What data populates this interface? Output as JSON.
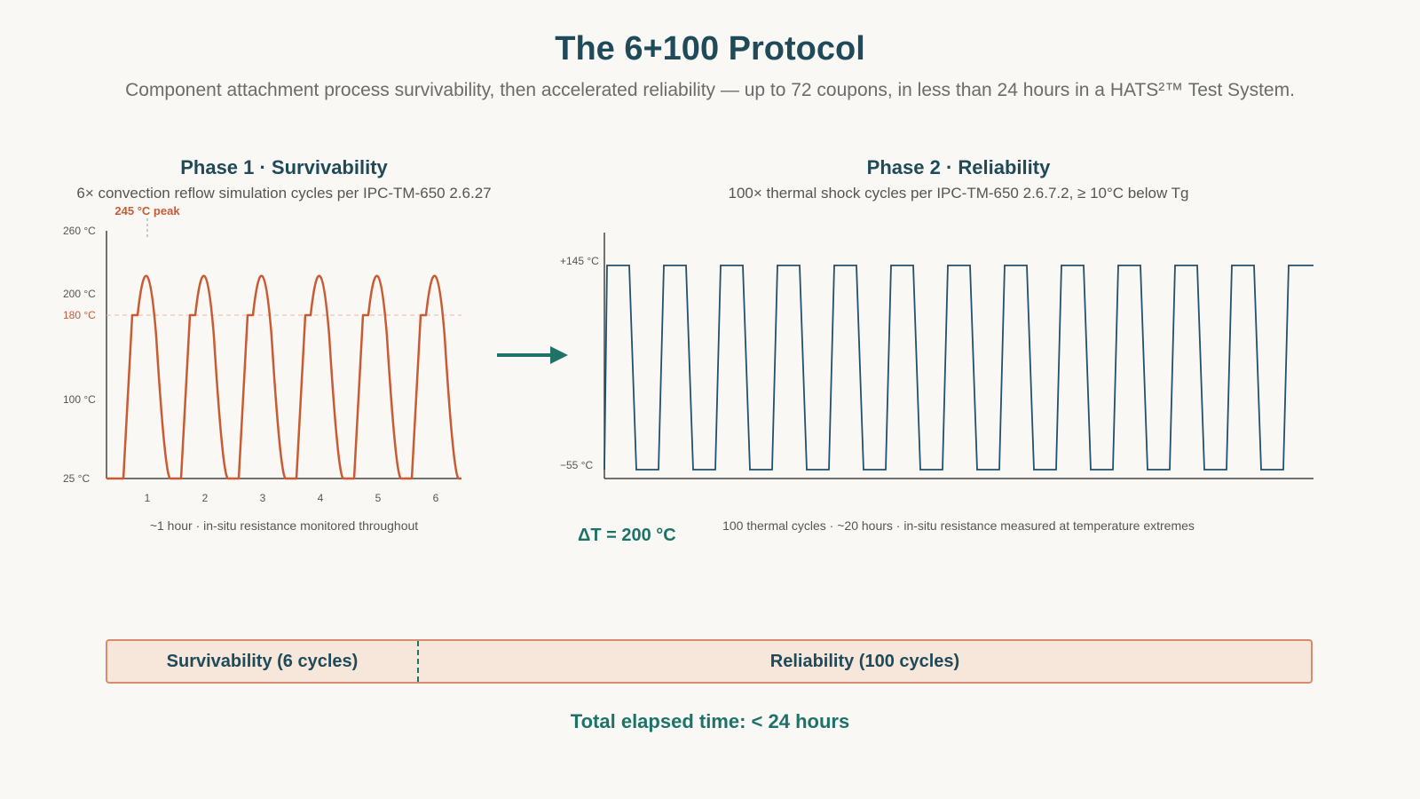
{
  "header": {
    "title": "The 6+100 Protocol",
    "subtitle": "Component attachment process survivability, then accelerated reliability — up to 72 coupons, in less than 24 hours in a HATS²™ Test System."
  },
  "phase1": {
    "title": "Phase 1 · Survivability",
    "description": "6× convection reflow simulation cycles per IPC-TM-650 2.6.27",
    "caption": "~1 hour · in-situ resistance monitored throughout"
  },
  "phase2": {
    "title": "Phase 2 · Reliability",
    "description": "100× thermal shock cycles per IPC-TM-650 2.6.7.2, ≥ 10°C below Tg",
    "caption": "100 thermal cycles · ~20 hours · in-situ resistance measured at temperature extremes",
    "delta": "ΔT = 200 °C"
  },
  "timeline": {
    "survivability_label": "Survivability (6 cycles)",
    "reliability_label": "Reliability (100 cycles)",
    "total": "Total elapsed time: < 24 hours"
  },
  "colors": {
    "reflow": "#c95b34",
    "shock": "#23506a",
    "accent": "#1e7268",
    "axis": "#444444"
  },
  "chart_data": [
    {
      "type": "line",
      "series": [
        {
          "values": [
            25,
            180,
            180,
            245,
            25
          ]
        }
      ],
      "cycles": 6,
      "x_ticks": [
        "1",
        "2",
        "3",
        "4",
        "5",
        "6"
      ],
      "y_ticks": [
        {
          "value": 260,
          "label": "260 °C"
        },
        {
          "value": 200,
          "label": "200 °C"
        },
        {
          "value": 180,
          "label": "180 °C"
        },
        {
          "value": 100,
          "label": "100 °C"
        },
        {
          "value": 25,
          "label": "25 °C"
        }
      ],
      "reference_line": {
        "value": 180,
        "label": "180 °C"
      },
      "peak": {
        "value": 245,
        "label": "245 °C peak"
      },
      "ylim": [
        25,
        260
      ]
    },
    {
      "type": "line",
      "high": 145,
      "low": -55,
      "cycles_shown": 13,
      "y_ticks": [
        {
          "value": 145,
          "label": "+145 °C"
        },
        {
          "value": -55,
          "label": "−55 °C"
        }
      ]
    }
  ]
}
